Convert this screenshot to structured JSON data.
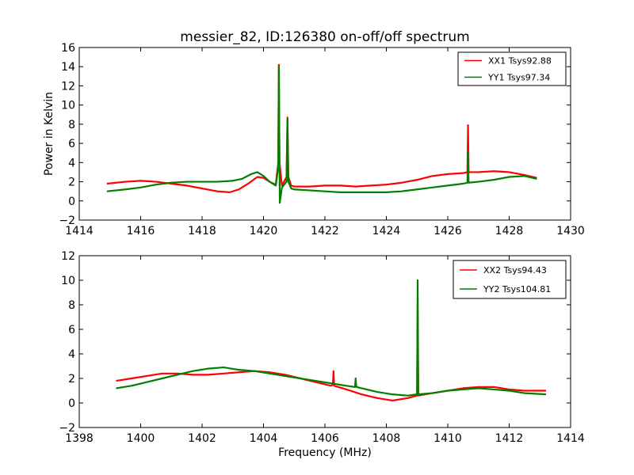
{
  "chart_data": [
    {
      "type": "line",
      "title": "messier_82, ID:126380 on-off/off spectrum",
      "xlabel": "",
      "ylabel": "Power in Kelvin",
      "xlim": [
        1414,
        1430
      ],
      "ylim": [
        -2,
        16
      ],
      "xticks": [
        1414,
        1416,
        1418,
        1420,
        1422,
        1424,
        1426,
        1428,
        1430
      ],
      "yticks": [
        -2,
        0,
        2,
        4,
        6,
        8,
        10,
        12,
        14,
        16
      ],
      "legend_position": "top-right",
      "series": [
        {
          "name": "XX1 Tsys92.88",
          "color": "#ff0000",
          "x": [
            1414.9,
            1415.5,
            1416.0,
            1416.5,
            1417.0,
            1417.5,
            1418.0,
            1418.5,
            1418.9,
            1419.2,
            1419.5,
            1419.8,
            1420.0,
            1420.2,
            1420.4,
            1420.48,
            1420.5,
            1420.52,
            1420.6,
            1420.75,
            1420.78,
            1420.81,
            1420.9,
            1421.0,
            1421.5,
            1422.0,
            1422.5,
            1423.0,
            1423.5,
            1424.0,
            1424.5,
            1425.0,
            1425.5,
            1426.0,
            1426.5,
            1426.64,
            1426.66,
            1426.68,
            1427.0,
            1427.5,
            1428.0,
            1428.5,
            1428.9
          ],
          "y": [
            1.8,
            2.0,
            2.1,
            2.0,
            1.8,
            1.6,
            1.3,
            1.0,
            0.9,
            1.2,
            1.8,
            2.5,
            2.4,
            2.0,
            1.7,
            4.0,
            14.2,
            4.0,
            1.6,
            2.5,
            8.7,
            2.5,
            1.6,
            1.5,
            1.5,
            1.6,
            1.6,
            1.5,
            1.6,
            1.7,
            1.9,
            2.2,
            2.6,
            2.8,
            2.9,
            3.0,
            7.9,
            3.0,
            3.0,
            3.1,
            3.0,
            2.7,
            2.4
          ]
        },
        {
          "name": "YY1 Tsys97.34",
          "color": "#008000",
          "x": [
            1414.9,
            1415.5,
            1416.0,
            1416.5,
            1417.0,
            1417.5,
            1418.0,
            1418.5,
            1419.0,
            1419.3,
            1419.6,
            1419.8,
            1420.0,
            1420.2,
            1420.4,
            1420.48,
            1420.5,
            1420.53,
            1420.6,
            1420.75,
            1420.78,
            1420.81,
            1420.9,
            1421.0,
            1421.5,
            1422.0,
            1422.5,
            1423.0,
            1423.5,
            1424.0,
            1424.5,
            1425.0,
            1425.5,
            1426.0,
            1426.5,
            1426.64,
            1426.66,
            1426.68,
            1427.0,
            1427.5,
            1428.0,
            1428.5,
            1428.9
          ],
          "y": [
            1.0,
            1.2,
            1.4,
            1.7,
            1.9,
            2.0,
            2.0,
            2.0,
            2.1,
            2.3,
            2.8,
            3.0,
            2.6,
            2.0,
            1.6,
            3.5,
            14.0,
            -0.2,
            1.4,
            2.0,
            8.5,
            2.0,
            1.3,
            1.2,
            1.1,
            1.0,
            0.9,
            0.9,
            0.9,
            0.9,
            1.0,
            1.2,
            1.4,
            1.6,
            1.8,
            1.9,
            5.0,
            1.9,
            2.0,
            2.2,
            2.5,
            2.6,
            2.3
          ]
        }
      ]
    },
    {
      "type": "line",
      "title": "",
      "xlabel": "Frequency (MHz)",
      "ylabel": "",
      "xlim": [
        1398,
        1414
      ],
      "ylim": [
        -2,
        12
      ],
      "xticks": [
        1398,
        1400,
        1402,
        1404,
        1406,
        1408,
        1410,
        1412,
        1414
      ],
      "yticks": [
        -2,
        0,
        2,
        4,
        6,
        8,
        10,
        12
      ],
      "legend_position": "top-right",
      "series": [
        {
          "name": "XX2 Tsys94.43",
          "color": "#ff0000",
          "x": [
            1399.2,
            1399.7,
            1400.2,
            1400.7,
            1401.2,
            1401.7,
            1402.2,
            1402.7,
            1403.2,
            1403.7,
            1404.2,
            1404.7,
            1405.2,
            1405.7,
            1406.2,
            1406.26,
            1406.28,
            1406.3,
            1406.7,
            1407.2,
            1407.7,
            1408.2,
            1408.7,
            1409.0,
            1409.02,
            1409.04,
            1409.5,
            1410.0,
            1410.5,
            1411.0,
            1411.5,
            1412.0,
            1412.5,
            1413.2
          ],
          "y": [
            1.8,
            2.0,
            2.2,
            2.4,
            2.4,
            2.3,
            2.3,
            2.4,
            2.5,
            2.6,
            2.5,
            2.3,
            2.0,
            1.7,
            1.4,
            1.5,
            2.6,
            1.4,
            1.1,
            0.7,
            0.4,
            0.2,
            0.4,
            0.6,
            7.7,
            0.6,
            0.8,
            1.0,
            1.2,
            1.3,
            1.3,
            1.1,
            1.0,
            1.0
          ]
        },
        {
          "name": "YY2 Tsys104.81",
          "color": "#008000",
          "x": [
            1399.2,
            1399.7,
            1400.2,
            1400.7,
            1401.2,
            1401.7,
            1402.2,
            1402.7,
            1403.2,
            1403.7,
            1404.2,
            1404.7,
            1405.2,
            1405.7,
            1406.2,
            1406.7,
            1406.98,
            1407.0,
            1407.02,
            1407.2,
            1407.7,
            1408.2,
            1408.7,
            1409.0,
            1409.02,
            1409.04,
            1409.5,
            1410.0,
            1410.5,
            1411.0,
            1411.5,
            1412.0,
            1412.5,
            1413.2
          ],
          "y": [
            1.2,
            1.4,
            1.7,
            2.0,
            2.3,
            2.6,
            2.8,
            2.9,
            2.7,
            2.6,
            2.4,
            2.2,
            2.0,
            1.8,
            1.6,
            1.4,
            1.3,
            2.0,
            1.3,
            1.2,
            0.9,
            0.7,
            0.6,
            0.7,
            10.0,
            0.7,
            0.8,
            1.0,
            1.1,
            1.2,
            1.1,
            1.0,
            0.8,
            0.7
          ]
        }
      ]
    }
  ]
}
